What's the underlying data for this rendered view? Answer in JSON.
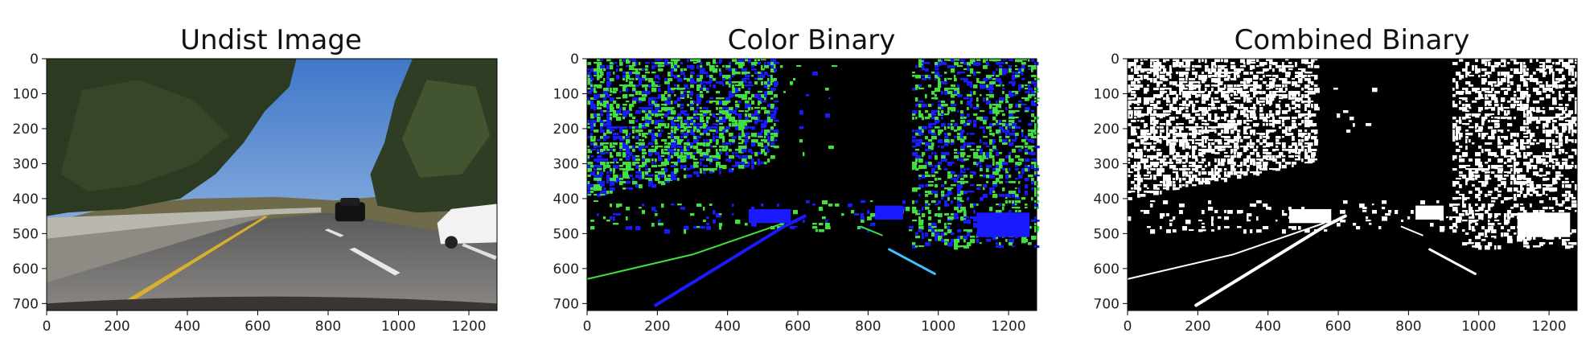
{
  "panels": [
    {
      "title": "Undist Image",
      "kind": "photo",
      "x_ticks": [
        "0",
        "200",
        "400",
        "600",
        "800",
        "1000",
        "1200"
      ],
      "y_ticks": [
        "0",
        "100",
        "200",
        "300",
        "400",
        "500",
        "600",
        "700"
      ],
      "xlim": [
        0,
        1280
      ],
      "ylim": [
        0,
        720
      ],
      "x_tick_values": [
        0,
        200,
        400,
        600,
        800,
        1000,
        1200
      ],
      "y_tick_values": [
        0,
        100,
        200,
        300,
        400,
        500,
        600,
        700
      ]
    },
    {
      "title": "Color Binary",
      "kind": "color-binary",
      "x_ticks": [
        "0",
        "200",
        "400",
        "600",
        "800",
        "1000",
        "1200"
      ],
      "y_ticks": [
        "0",
        "100",
        "200",
        "300",
        "400",
        "500",
        "600",
        "700"
      ],
      "xlim": [
        0,
        1280
      ],
      "ylim": [
        0,
        720
      ],
      "x_tick_values": [
        0,
        200,
        400,
        600,
        800,
        1000,
        1200
      ],
      "y_tick_values": [
        0,
        100,
        200,
        300,
        400,
        500,
        600,
        700
      ]
    },
    {
      "title": "Combined Binary",
      "kind": "binary",
      "x_ticks": [
        "0",
        "200",
        "400",
        "600",
        "800",
        "1000",
        "1200"
      ],
      "y_ticks": [
        "0",
        "100",
        "200",
        "300",
        "400",
        "500",
        "600",
        "700"
      ],
      "xlim": [
        0,
        1280
      ],
      "ylim": [
        0,
        720
      ],
      "x_tick_values": [
        0,
        200,
        400,
        600,
        800,
        1000,
        1200
      ],
      "y_tick_values": [
        0,
        100,
        200,
        300,
        400,
        500,
        600,
        700
      ]
    }
  ],
  "colors": {
    "binary_green": "#3fe03f",
    "binary_blue": "#1a1aff",
    "binary_white": "#ffffff",
    "binary_black": "#000000",
    "sky": "#5f8fd0",
    "road": "#6b6b6b",
    "lane_yellow": "#d8b030",
    "trees": "#2c3a22"
  }
}
